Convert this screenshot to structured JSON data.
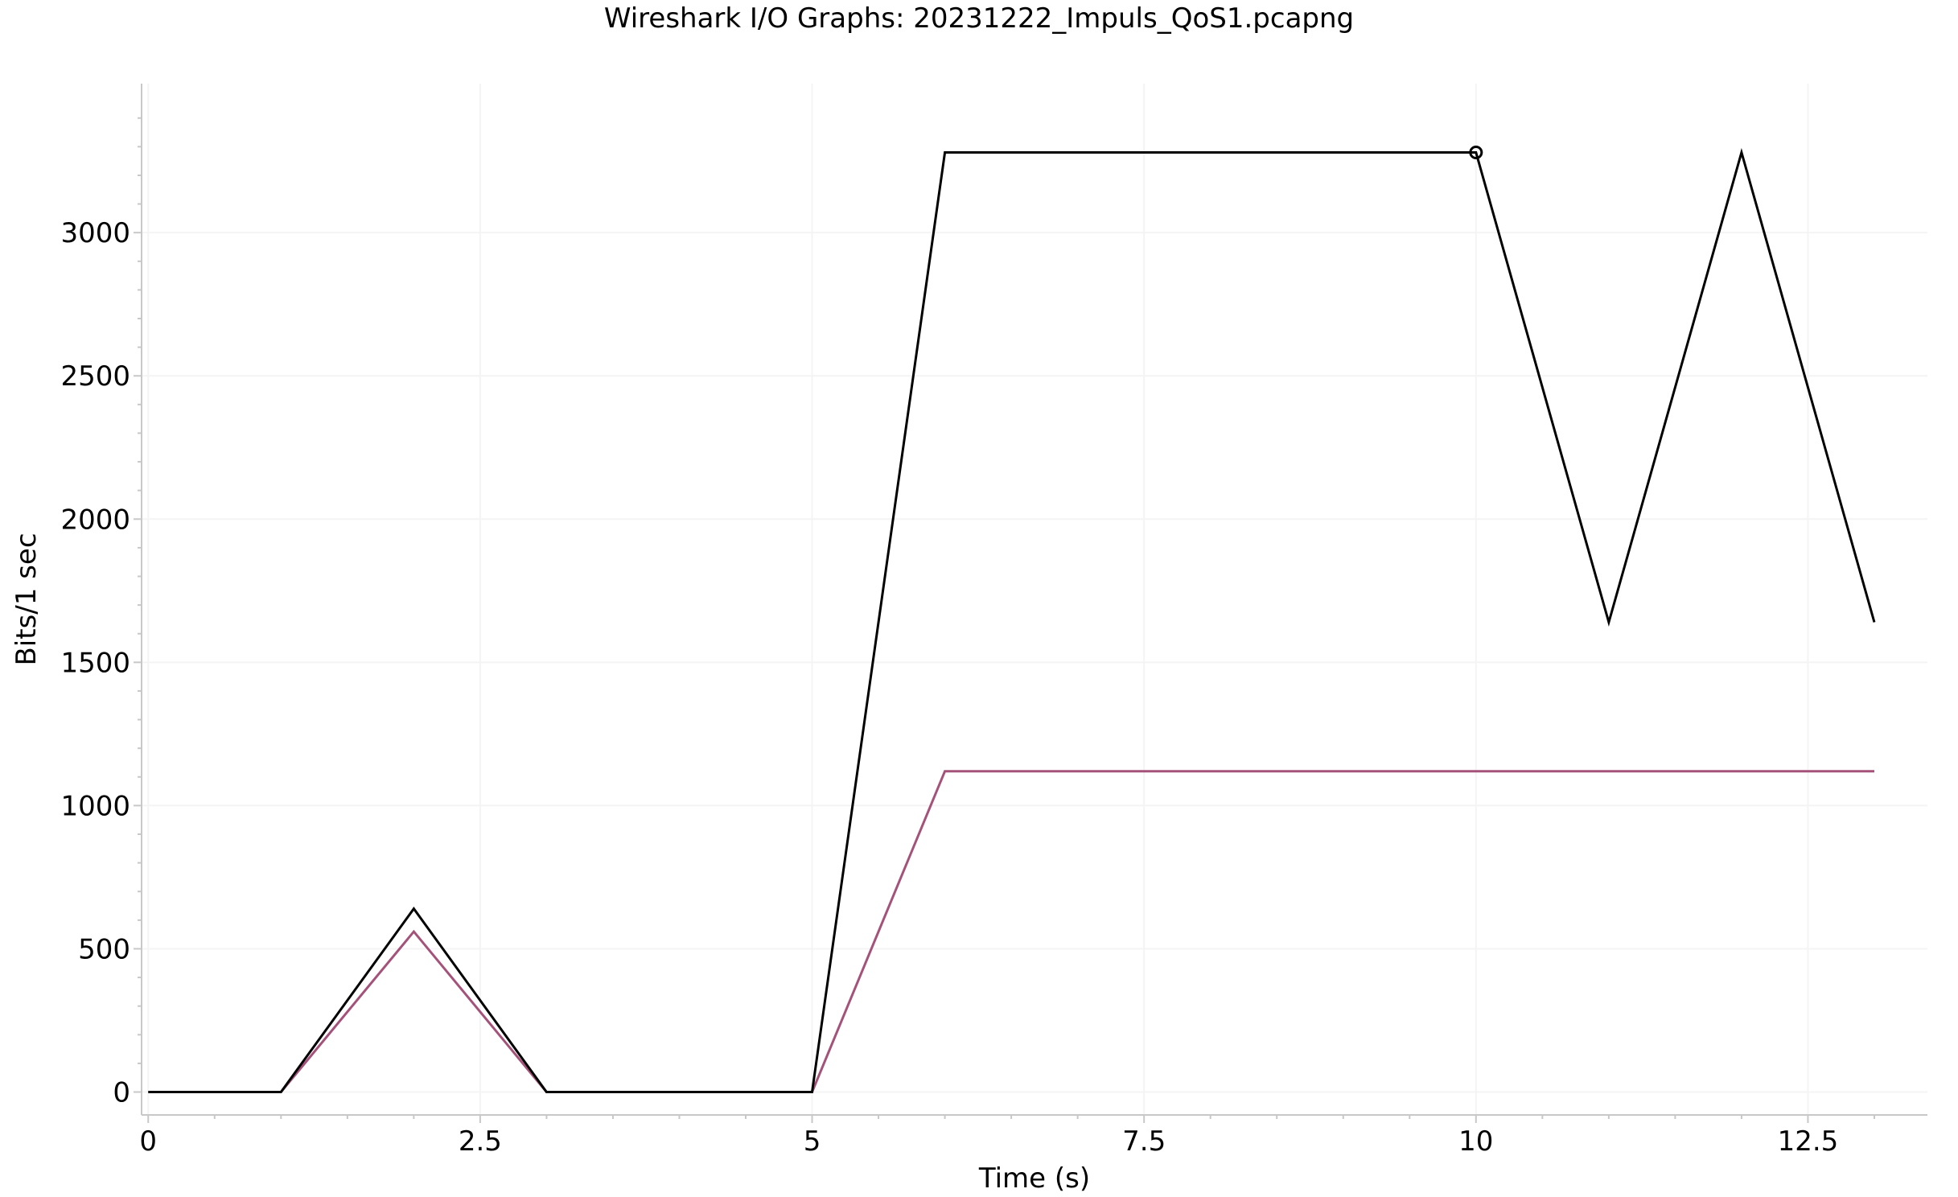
{
  "chart_data": {
    "type": "line",
    "title": "Wireshark I/O Graphs: 20231222_Impuls_QoS1.pcapng",
    "xlabel": "Time (s)",
    "ylabel": "Bits/1 sec",
    "xlim": [
      -0.05,
      13.4
    ],
    "ylim": [
      -80,
      3520
    ],
    "x_ticks": [
      0,
      2.5,
      5,
      7.5,
      10,
      12.5
    ],
    "x_tick_labels": [
      "0",
      "2.5",
      "5",
      "7.5",
      "10",
      "12.5"
    ],
    "y_ticks": [
      0,
      500,
      1000,
      1500,
      2000,
      2500,
      3000
    ],
    "y_tick_labels": [
      "0",
      "500",
      "1000",
      "1500",
      "2000",
      "2500",
      "3000"
    ],
    "grid": true,
    "x": [
      0,
      1,
      2,
      3,
      4,
      5,
      6,
      7,
      8,
      9,
      10,
      11,
      12,
      13
    ],
    "series": [
      {
        "color": "#000000",
        "values": [
          0,
          0,
          640,
          0,
          0,
          0,
          3280,
          3280,
          3280,
          3280,
          3280,
          1640,
          3280,
          1640
        ]
      },
      {
        "color": "#a5527a",
        "values": [
          0,
          0,
          560,
          0,
          0,
          0,
          1120,
          1120,
          1120,
          1120,
          1120,
          1120,
          1120,
          1120
        ]
      }
    ],
    "marker": {
      "x": 10,
      "y": 3280,
      "series": 0
    }
  }
}
